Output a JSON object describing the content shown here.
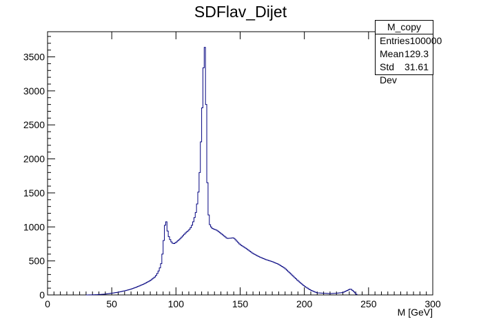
{
  "chart_data": {
    "type": "histogram",
    "title": "SDFlav_Dijet",
    "xlabel": "M [GeV]",
    "ylabel": "",
    "xlim": [
      0,
      300
    ],
    "ylim": [
      0,
      3870
    ],
    "x_ticks": [
      0,
      50,
      100,
      150,
      200,
      250,
      300
    ],
    "y_ticks": [
      0,
      500,
      1000,
      1500,
      2000,
      2500,
      3000,
      3500
    ],
    "grid": false,
    "line_color": "#00007f",
    "points": [
      [
        30,
        0
      ],
      [
        35,
        2
      ],
      [
        40,
        5
      ],
      [
        45,
        12
      ],
      [
        50,
        25
      ],
      [
        55,
        40
      ],
      [
        60,
        60
      ],
      [
        65,
        85
      ],
      [
        70,
        120
      ],
      [
        75,
        160
      ],
      [
        80,
        210
      ],
      [
        84,
        270
      ],
      [
        86,
        330
      ],
      [
        88,
        420
      ],
      [
        89,
        500
      ],
      [
        90,
        700
      ],
      [
        91,
        900
      ],
      [
        92,
        1150
      ],
      [
        93,
        1000
      ],
      [
        94,
        880
      ],
      [
        96,
        790
      ],
      [
        98,
        750
      ],
      [
        100,
        770
      ],
      [
        103,
        820
      ],
      [
        106,
        880
      ],
      [
        108,
        920
      ],
      [
        110,
        950
      ],
      [
        112,
        1000
      ],
      [
        114,
        1100
      ],
      [
        116,
        1250
      ],
      [
        118,
        1600
      ],
      [
        119,
        2000
      ],
      [
        120,
        2500
      ],
      [
        121,
        3000
      ],
      [
        122,
        3680
      ],
      [
        123,
        3600
      ],
      [
        124,
        2000
      ],
      [
        125,
        1300
      ],
      [
        126,
        1050
      ],
      [
        128,
        980
      ],
      [
        132,
        950
      ],
      [
        136,
        890
      ],
      [
        140,
        830
      ],
      [
        145,
        840
      ],
      [
        150,
        740
      ],
      [
        155,
        680
      ],
      [
        160,
        610
      ],
      [
        165,
        560
      ],
      [
        170,
        520
      ],
      [
        175,
        490
      ],
      [
        180,
        450
      ],
      [
        185,
        390
      ],
      [
        190,
        300
      ],
      [
        195,
        210
      ],
      [
        200,
        130
      ],
      [
        205,
        70
      ],
      [
        210,
        30
      ],
      [
        215,
        25
      ],
      [
        220,
        20
      ],
      [
        225,
        25
      ],
      [
        230,
        35
      ],
      [
        234,
        70
      ],
      [
        236,
        90
      ],
      [
        238,
        60
      ],
      [
        240,
        20
      ],
      [
        241,
        0
      ]
    ]
  },
  "stats_box": {
    "name": "M_copy",
    "entries_label": "Entries",
    "entries_value": "100000",
    "mean_label": "Mean",
    "mean_value": "129.3",
    "stddev_label": "Std Dev",
    "stddev_value": "31.61"
  }
}
